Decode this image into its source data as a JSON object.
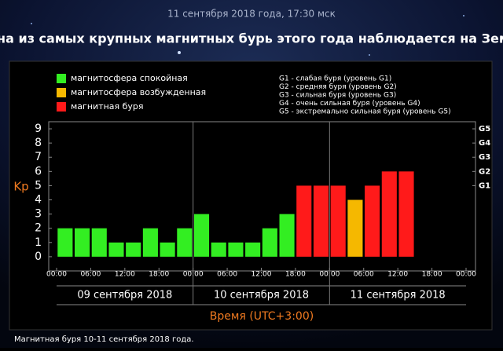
{
  "header": {
    "date": "11 сентября 2018 года, 17:30 мск",
    "title": "Одна из самых крупных магнитных бурь этого года наблюдается на Земле"
  },
  "chart_data": {
    "type": "bar",
    "ylabel": "Kp",
    "xlabel": "Время (UTC+3:00)",
    "x": [
      0,
      3,
      6,
      9,
      12,
      15,
      18,
      21,
      24,
      27,
      30,
      33,
      36,
      39,
      42,
      45,
      48,
      51,
      54,
      57,
      60,
      63,
      66,
      69
    ],
    "xlim": [
      0,
      72
    ],
    "xticks": [
      {
        "value": 0,
        "label": "00:00"
      },
      {
        "value": 6,
        "label": "06:00"
      },
      {
        "value": 12,
        "label": "12:00"
      },
      {
        "value": 18,
        "label": "18:00"
      },
      {
        "value": 24,
        "label": "00:00"
      },
      {
        "value": 30,
        "label": "06:00"
      },
      {
        "value": 36,
        "label": "12:00"
      },
      {
        "value": 42,
        "label": "18:00"
      },
      {
        "value": 48,
        "label": "00:00"
      },
      {
        "value": 54,
        "label": "06:00"
      },
      {
        "value": 60,
        "label": "12:00"
      },
      {
        "value": 66,
        "label": "18:00"
      },
      {
        "value": 72,
        "label": "00:00"
      }
    ],
    "day_labels": [
      "09 сентября 2018",
      "10 сентября 2018",
      "11 сентября 2018"
    ],
    "ylim": [
      -1,
      9.5
    ],
    "yticks": [
      0,
      1,
      2,
      3,
      4,
      5,
      6,
      7,
      8,
      9
    ],
    "y2lim": [
      -1,
      9.5
    ],
    "y2ticks": [
      {
        "value": 5,
        "label": "G1"
      },
      {
        "value": 6,
        "label": "G2"
      },
      {
        "value": 7,
        "label": "G3"
      },
      {
        "value": 8,
        "label": "G4"
      },
      {
        "value": 9,
        "label": "G5"
      }
    ],
    "grid": false,
    "series": [
      {
        "name": "магнитосфера спокойная",
        "color": "#33ee22",
        "values": [
          2,
          2,
          2,
          1,
          1,
          2,
          1,
          2,
          3,
          1,
          1,
          1,
          2,
          3,
          null,
          null,
          null,
          null,
          null,
          null,
          null,
          null,
          null,
          null
        ]
      },
      {
        "name": "магнитосфера возбужденная",
        "color": "#f5b800",
        "values": [
          null,
          null,
          null,
          null,
          null,
          null,
          null,
          null,
          null,
          null,
          null,
          null,
          null,
          null,
          null,
          null,
          null,
          4,
          null,
          null,
          null,
          null,
          null,
          null
        ]
      },
      {
        "name": "магнитная буря",
        "color": "#ff1a1a",
        "values": [
          null,
          null,
          null,
          null,
          null,
          null,
          null,
          null,
          null,
          null,
          null,
          null,
          null,
          null,
          5,
          5,
          5,
          null,
          5,
          6,
          6,
          null,
          null,
          null
        ]
      }
    ],
    "notes": [
      "G1 - слабая буря (уровень G1)",
      "G2 - средняя буря (уровень G2)",
      "G3 - сильная буря (уровень G3)",
      "G4 - очень сильная буря (уровень G4)",
      "G5 - экстремально сильная буря (уровень G5)"
    ]
  },
  "caption": "Магнитная буря 10-11 сентября 2018 года."
}
